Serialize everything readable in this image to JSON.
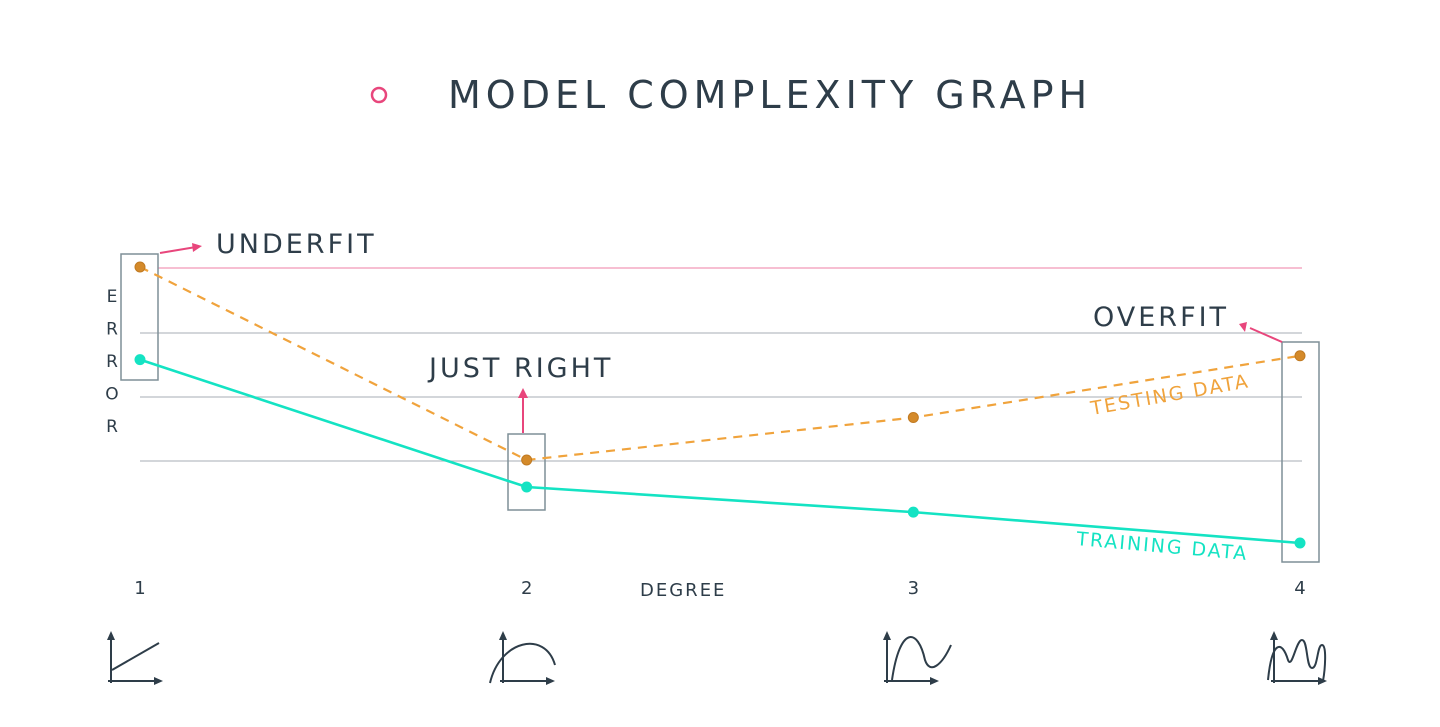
{
  "colors": {
    "accent": "#e8467c",
    "testing": "#f0a33c",
    "training": "#14e3c3",
    "text": "#2e3d49",
    "grid": "#b9bec3",
    "box": "#7e8f97"
  },
  "chart_data": {
    "type": "line",
    "title": "MODEL COMPLEXITY GRAPH",
    "xlabel": "DEGREE",
    "ylabel": "ERROR",
    "categories": [
      "1",
      "2",
      "3",
      "4"
    ],
    "x": [
      1,
      2,
      3,
      4
    ],
    "grid": true,
    "series": [
      {
        "name": "TESTING DATA",
        "style": "dashed",
        "color": "#f0a33c",
        "values": [
          1.0,
          0.0,
          0.22,
          0.54
        ]
      },
      {
        "name": "TRAINING DATA",
        "style": "solid",
        "color": "#14e3c3",
        "values": [
          0.52,
          -0.14,
          -0.27,
          -0.43
        ]
      }
    ],
    "ylim": [
      -0.45,
      1.02
    ],
    "annotations": [
      {
        "text": "UNDERFIT",
        "x": 1
      },
      {
        "text": "JUST RIGHT",
        "x": 2
      },
      {
        "text": "OVERFIT",
        "x": 4
      }
    ],
    "thumbnail_icons": [
      "linear-fit-icon",
      "quadratic-fit-icon",
      "cubic-fit-icon",
      "quartic-fit-icon"
    ]
  }
}
